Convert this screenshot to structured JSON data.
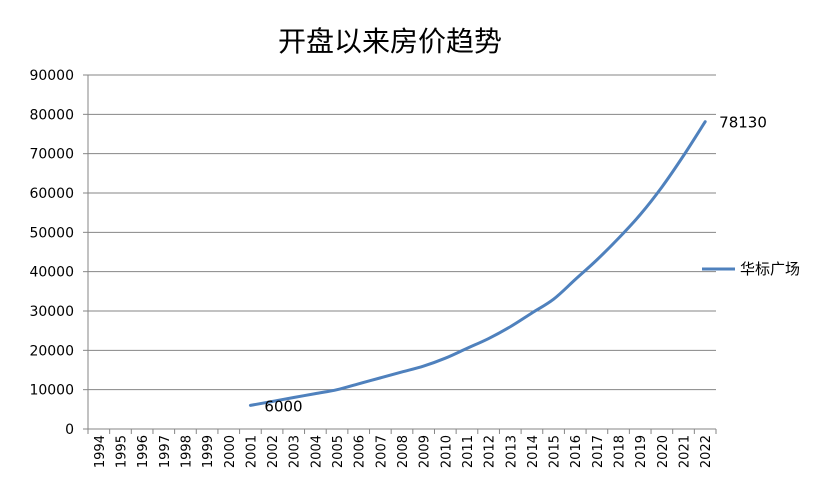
{
  "chart_data": {
    "type": "line",
    "title": "开盘以来房价趋势",
    "xlabel": "",
    "ylabel": "",
    "categories": [
      "1994",
      "1995",
      "1996",
      "1997",
      "1998",
      "1999",
      "2000",
      "2001",
      "2002",
      "2003",
      "2004",
      "2005",
      "2006",
      "2007",
      "2008",
      "2009",
      "2010",
      "2011",
      "2012",
      "2013",
      "2014",
      "2015",
      "2016",
      "2017",
      "2018",
      "2019",
      "2020",
      "2021",
      "2022"
    ],
    "ylim": [
      0,
      90000
    ],
    "yticks": [
      "0",
      "10000",
      "20000",
      "30000",
      "40000",
      "50000",
      "60000",
      "70000",
      "80000",
      "90000"
    ],
    "grid": true,
    "legend_position": "right",
    "series": [
      {
        "name": "华标广场",
        "color": "#4F81BD",
        "values": [
          null,
          null,
          null,
          null,
          null,
          null,
          null,
          6000,
          7000,
          8000,
          9000,
          10000,
          11500,
          13000,
          14500,
          16000,
          18000,
          20500,
          23000,
          26000,
          29500,
          33000,
          38000,
          43000,
          48500,
          54500,
          61500,
          69500,
          78130
        ]
      }
    ],
    "data_labels": [
      {
        "text": "6000",
        "category": "2001"
      },
      {
        "text": "78130",
        "category": "2022"
      }
    ]
  }
}
